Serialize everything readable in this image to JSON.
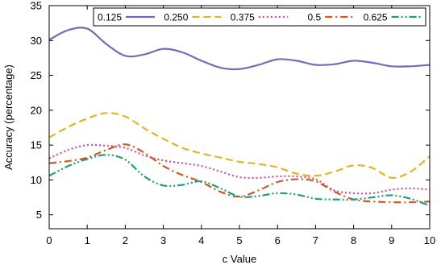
{
  "chart_data": {
    "type": "line",
    "title": "",
    "xlabel": "c Value",
    "ylabel": "Accuracy (percentage)",
    "xlim": [
      0,
      10
    ],
    "ylim": [
      3,
      35
    ],
    "xticks": [
      0,
      1,
      2,
      3,
      4,
      5,
      6,
      7,
      8,
      9,
      10
    ],
    "yticks": [
      5,
      10,
      15,
      20,
      25,
      30,
      35
    ],
    "grid": false,
    "legend_position": "top",
    "x": [
      0,
      0.5,
      1,
      1.5,
      2,
      2.5,
      3,
      3.5,
      4,
      4.5,
      5,
      5.5,
      6,
      6.5,
      7,
      7.5,
      8,
      8.5,
      9,
      9.5,
      10
    ],
    "series": [
      {
        "name": "0.125",
        "color": "#7b68b8",
        "dash": "solid",
        "values": [
          30.1,
          31.5,
          31.7,
          29.5,
          27.8,
          28.0,
          28.8,
          28.3,
          27.1,
          26.1,
          25.9,
          26.5,
          27.3,
          27.1,
          26.5,
          26.6,
          27.1,
          26.8,
          26.3,
          26.3,
          26.5
        ]
      },
      {
        "name": "0.250",
        "color": "#e6b422",
        "dash": "dashed",
        "values": [
          16.1,
          17.6,
          18.8,
          19.6,
          19.1,
          17.4,
          15.9,
          14.6,
          13.8,
          13.2,
          12.6,
          12.3,
          11.8,
          10.9,
          10.6,
          11.2,
          12.1,
          11.7,
          10.3,
          11.2,
          13.4
        ]
      },
      {
        "name": "0.375",
        "color": "#d946b0",
        "dash": "dotted",
        "values": [
          13.1,
          14.3,
          15.0,
          14.9,
          14.6,
          13.5,
          12.8,
          12.4,
          12.0,
          11.2,
          10.4,
          10.3,
          10.5,
          10.5,
          10.1,
          8.5,
          8.1,
          8.1,
          8.6,
          8.8,
          8.6
        ]
      },
      {
        "name": "0.5",
        "color": "#d2591a",
        "dash": "dashdot",
        "values": [
          12.4,
          12.7,
          13.2,
          14.3,
          15.1,
          13.9,
          12.0,
          10.7,
          9.7,
          8.3,
          7.6,
          8.5,
          9.7,
          10.1,
          9.8,
          8.3,
          7.2,
          6.9,
          6.8,
          6.8,
          6.9
        ]
      },
      {
        "name": "0.625",
        "color": "#1e9e7a",
        "dash": "dashdotdot",
        "values": [
          10.6,
          12.0,
          13.0,
          13.6,
          12.9,
          10.5,
          9.2,
          9.3,
          9.8,
          8.8,
          7.6,
          7.7,
          8.1,
          7.9,
          7.3,
          7.2,
          7.2,
          7.5,
          7.8,
          7.3,
          6.3
        ]
      }
    ]
  }
}
